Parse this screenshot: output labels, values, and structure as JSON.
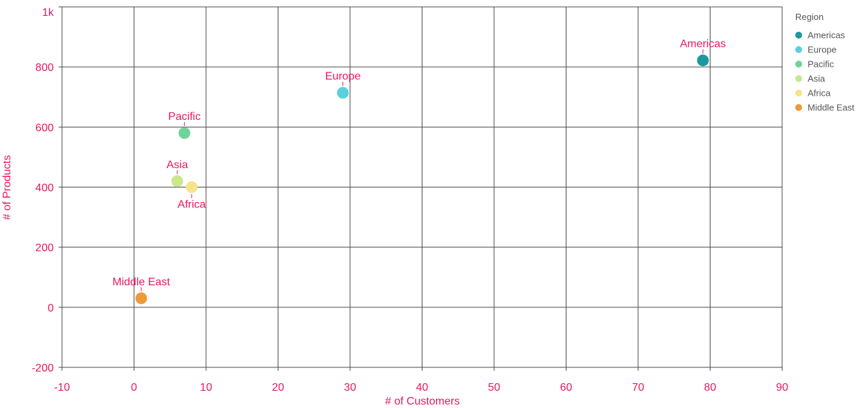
{
  "chart_data": {
    "type": "scatter",
    "xlabel": "# of Customers",
    "ylabel": "# of Products",
    "xlim": [
      -10,
      90
    ],
    "ylim": [
      -200,
      1000
    ],
    "x_ticks": [
      -10,
      0,
      10,
      20,
      30,
      40,
      50,
      60,
      70,
      80,
      90
    ],
    "x_tick_labels": [
      "-10",
      "0",
      "10",
      "20",
      "30",
      "40",
      "50",
      "60",
      "70",
      "80",
      "90"
    ],
    "y_ticks": [
      -200,
      0,
      200,
      400,
      600,
      800,
      1000
    ],
    "y_tick_labels": [
      "-200",
      "0",
      "200",
      "400",
      "600",
      "800",
      "1k"
    ],
    "grid": true,
    "legend": {
      "title": "Region",
      "placement": "right"
    },
    "series": [
      {
        "name": "Americas",
        "x": 79,
        "y": 822,
        "color": "#1a9a9e",
        "label_side": "above"
      },
      {
        "name": "Europe",
        "x": 29,
        "y": 714,
        "color": "#5bd1db",
        "label_side": "above"
      },
      {
        "name": "Pacific",
        "x": 7,
        "y": 580,
        "color": "#6fd39a",
        "label_side": "above"
      },
      {
        "name": "Asia",
        "x": 6,
        "y": 420,
        "color": "#c8e88b",
        "label_side": "above"
      },
      {
        "name": "Africa",
        "x": 8,
        "y": 400,
        "color": "#f7e38c",
        "label_side": "below"
      },
      {
        "name": "Middle East",
        "x": 1,
        "y": 30,
        "color": "#ee9a3a",
        "label_side": "above"
      }
    ]
  }
}
